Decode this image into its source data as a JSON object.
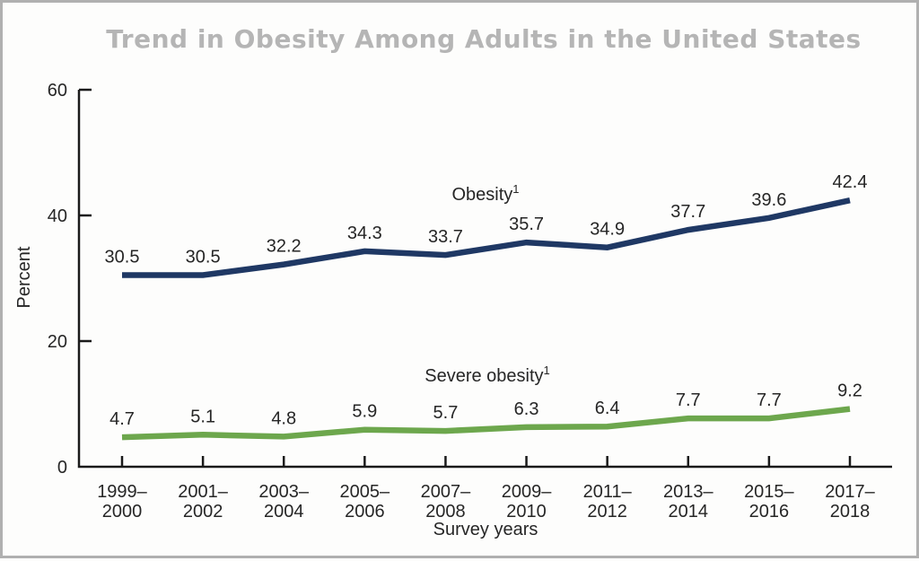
{
  "window": {
    "background_color": "#fdfdfc",
    "border_color": "#b0b0b0"
  },
  "header": {
    "title": "Trend in Obesity Among Adults in the United States",
    "title_color": "#b5b5b5"
  },
  "chart_data": {
    "type": "line",
    "title": "Trend in Obesity Among Adults in the United States",
    "xlabel": "Survey years",
    "ylabel": "Percent",
    "ylim": [
      0,
      60
    ],
    "yticks": [
      0,
      20,
      40,
      60
    ],
    "grid": false,
    "legend_position": "inline-labels-above-lines",
    "axis_color": "#1a1a1a",
    "text_color": "#262626",
    "categories": [
      [
        "1999–",
        "2000"
      ],
      [
        "2001–",
        "2002"
      ],
      [
        "2003–",
        "2004"
      ],
      [
        "2005–",
        "2006"
      ],
      [
        "2007–",
        "2008"
      ],
      [
        "2009–",
        "2010"
      ],
      [
        "2011–",
        "2012"
      ],
      [
        "2013–",
        "2014"
      ],
      [
        "2015–",
        "2016"
      ],
      [
        "2017–",
        "2018"
      ]
    ],
    "series": [
      {
        "name": "Obesity",
        "footnote_mark": "1",
        "color": "#1f3864",
        "values": [
          30.5,
          30.5,
          32.2,
          34.3,
          33.7,
          35.7,
          34.9,
          37.7,
          39.6,
          42.4
        ]
      },
      {
        "name": "Severe obesity",
        "footnote_mark": "1",
        "color": "#6da74d",
        "values": [
          4.7,
          5.1,
          4.8,
          5.9,
          5.7,
          6.3,
          6.4,
          7.7,
          7.7,
          9.2
        ]
      }
    ]
  }
}
